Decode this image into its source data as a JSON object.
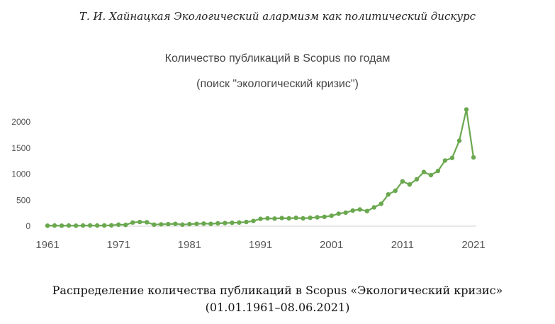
{
  "header": {
    "text": "Т. И. Хайнацкая Экологический алармизм как политический дискурс"
  },
  "chart_data": {
    "type": "line",
    "title": "Количество публикаций в Scopus по годам",
    "subtitle": "(поиск \"экологический кризис\")",
    "xlabel": "",
    "ylabel": "",
    "xlim": [
      1961,
      2021
    ],
    "ylim": [
      0,
      2300
    ],
    "x_ticks": [
      "1961",
      "1971",
      "1981",
      "1991",
      "2001",
      "2011",
      "2021"
    ],
    "y_ticks": [
      "0",
      "500",
      "1000",
      "1500",
      "2000"
    ],
    "grid": false,
    "legend": "none",
    "series": [
      {
        "color": "#6aa84f",
        "x": [
          1961,
          1962,
          1963,
          1964,
          1965,
          1966,
          1967,
          1968,
          1969,
          1970,
          1971,
          1972,
          1973,
          1974,
          1975,
          1976,
          1977,
          1978,
          1979,
          1980,
          1981,
          1982,
          1983,
          1984,
          1985,
          1986,
          1987,
          1988,
          1989,
          1990,
          1991,
          1992,
          1993,
          1994,
          1995,
          1996,
          1997,
          1998,
          1999,
          2000,
          2001,
          2002,
          2003,
          2004,
          2005,
          2006,
          2007,
          2008,
          2009,
          2010,
          2011,
          2012,
          2013,
          2014,
          2015,
          2016,
          2017,
          2018,
          2019,
          2020,
          2021
        ],
        "y": [
          10,
          12,
          10,
          12,
          10,
          12,
          14,
          12,
          14,
          16,
          30,
          25,
          70,
          80,
          75,
          30,
          35,
          40,
          45,
          30,
          40,
          45,
          50,
          45,
          55,
          60,
          65,
          70,
          80,
          100,
          140,
          150,
          145,
          155,
          150,
          160,
          150,
          160,
          170,
          180,
          200,
          240,
          260,
          300,
          320,
          290,
          360,
          430,
          610,
          680,
          860,
          800,
          900,
          1040,
          980,
          1060,
          1260,
          1310,
          1640,
          2240,
          1320
        ]
      }
    ]
  },
  "caption": {
    "line1": "Распределение количества публикаций в Scopus «Экологический кризис»",
    "line2": "(01.01.1961–08.06.2021)"
  }
}
